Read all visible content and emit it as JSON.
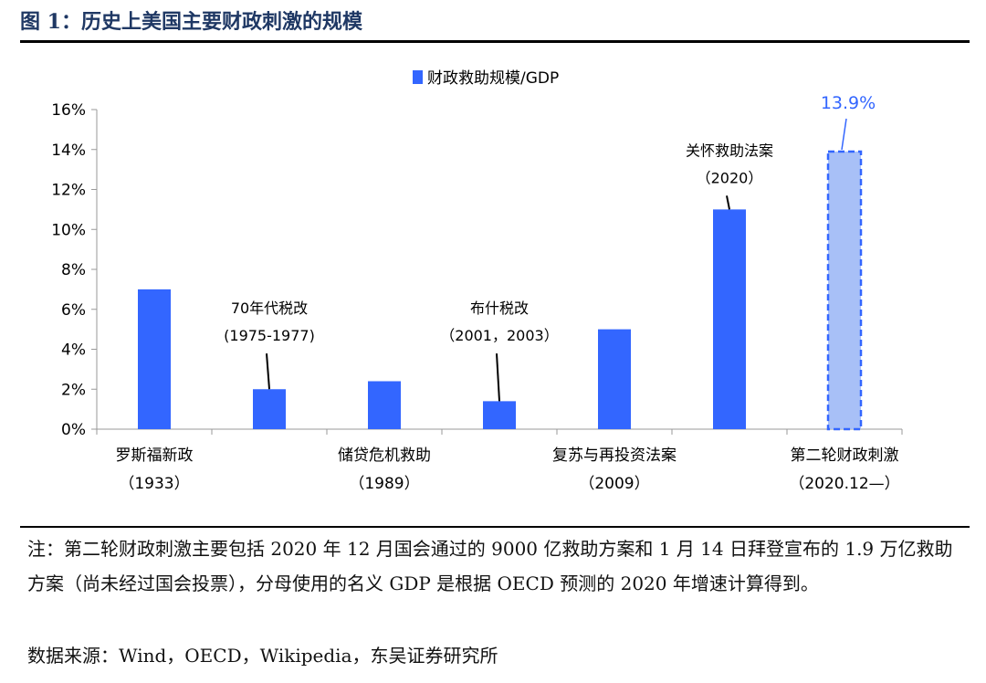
{
  "header": {
    "title": "图 1：历史上美国主要财政刺激的规模"
  },
  "colors": {
    "bar": "#3366ff",
    "projected_fill": "#a8c0f7",
    "projected_border": "#3366ff",
    "callout": "#3366ff",
    "title": "#1f3864"
  },
  "chart_data": {
    "type": "bar",
    "title": "",
    "xlabel": "",
    "ylabel": "",
    "ylim": [
      0,
      16
    ],
    "yticks": [
      "0%",
      "2%",
      "4%",
      "6%",
      "8%",
      "10%",
      "12%",
      "14%",
      "16%"
    ],
    "legend": {
      "label": "财政救助规模/GDP",
      "position": "top"
    },
    "series": [
      {
        "name": "财政救助规模/GDP",
        "values": [
          7.0,
          2.0,
          2.4,
          1.4,
          5.0,
          11.0,
          13.9
        ]
      }
    ],
    "bars": [
      {
        "value": 7.0,
        "projected": false
      },
      {
        "value": 2.0,
        "projected": false
      },
      {
        "value": 2.4,
        "projected": false
      },
      {
        "value": 1.4,
        "projected": false
      },
      {
        "value": 5.0,
        "projected": false
      },
      {
        "value": 11.0,
        "projected": false
      },
      {
        "value": 13.9,
        "projected": true
      }
    ],
    "axis_labels": [
      {
        "bar": 0,
        "name": "罗斯福新政",
        "year": "（1933）"
      },
      {
        "bar": 2,
        "name": "储贷危机救助",
        "year": "（1989）"
      },
      {
        "bar": 4,
        "name": "复苏与再投资法案",
        "year": "（2009）"
      },
      {
        "bar": 6,
        "name": "第二轮财政刺激",
        "year": "（2020.12—）"
      }
    ],
    "annotations": [
      {
        "bar": 1,
        "name": "70年代税改",
        "year": "(1975-1977)",
        "label_y": 5.8
      },
      {
        "bar": 3,
        "name": "布什税改",
        "year": "（2001，2003）",
        "label_y": 5.8
      },
      {
        "bar": 5,
        "name": "关怀救助法案",
        "year": "（2020）",
        "label_y": 13.7
      }
    ],
    "callout": {
      "bar": 6,
      "text": "13.9%"
    }
  },
  "notes": {
    "text": "注：第二轮财政刺激主要包括 2020 年 12 月国会通过的 9000 亿救助方案和 1 月 14 日拜登宣布的 1.9 万亿救助方案（尚未经过国会投票），分母使用的名义 GDP 是根据 OECD 预测的 2020 年增速计算得到。",
    "source": "数据来源：Wind，OECD，Wikipedia，东吴证券研究所"
  }
}
